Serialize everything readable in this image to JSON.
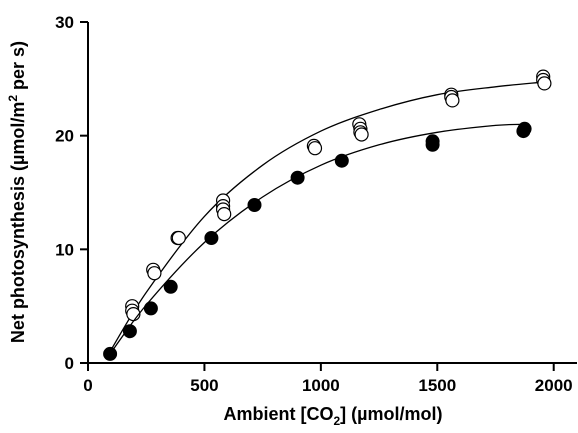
{
  "chart_data": {
    "type": "scatter",
    "title": "",
    "xlabel": {
      "prefix": "Ambient [CO",
      "sub": "2",
      "suffix": "] (µmol/mol)"
    },
    "ylabel": {
      "prefix": "Net photosynthesis (µmol/m",
      "sup": "2",
      "suffix": " per s)"
    },
    "xlim": [
      0,
      2100
    ],
    "ylim": [
      0,
      30
    ],
    "xticks": [
      "0",
      "500",
      "1000",
      "1500",
      "2000"
    ],
    "yticks": [
      "0",
      "10",
      "20",
      "30"
    ],
    "grid": false,
    "legend": "none",
    "series": [
      {
        "marker": "open-circle",
        "points": [
          [
            190,
            5.0
          ],
          [
            190,
            4.6
          ],
          [
            195,
            4.3
          ],
          [
            280,
            8.2
          ],
          [
            285,
            7.9
          ],
          [
            385,
            11.0
          ],
          [
            390,
            11.0
          ],
          [
            580,
            14.3
          ],
          [
            580,
            13.8
          ],
          [
            580,
            13.5
          ],
          [
            585,
            13.1
          ],
          [
            970,
            19.1
          ],
          [
            975,
            18.9
          ],
          [
            1165,
            21.0
          ],
          [
            1170,
            20.6
          ],
          [
            1170,
            20.3
          ],
          [
            1175,
            20.1
          ],
          [
            1560,
            23.6
          ],
          [
            1560,
            23.4
          ],
          [
            1565,
            23.1
          ],
          [
            1955,
            25.2
          ],
          [
            1955,
            24.9
          ],
          [
            1960,
            24.6
          ]
        ],
        "fit": [
          [
            100,
            1.2
          ],
          [
            250,
            6.2
          ],
          [
            500,
            12.9
          ],
          [
            750,
            17.4
          ],
          [
            1000,
            20.4
          ],
          [
            1250,
            22.3
          ],
          [
            1500,
            23.6
          ],
          [
            1750,
            24.3
          ],
          [
            1950,
            24.7
          ]
        ]
      },
      {
        "marker": "filled-circle",
        "points": [
          [
            95,
            0.8
          ],
          [
            180,
            2.8
          ],
          [
            270,
            4.8
          ],
          [
            355,
            6.7
          ],
          [
            530,
            11.0
          ],
          [
            715,
            13.9
          ],
          [
            900,
            16.3
          ],
          [
            1090,
            17.8
          ],
          [
            1480,
            19.2
          ],
          [
            1480,
            19.5
          ],
          [
            1870,
            20.4
          ],
          [
            1875,
            20.6
          ]
        ],
        "fit": [
          [
            95,
            0.8
          ],
          [
            250,
            5.1
          ],
          [
            500,
            10.6
          ],
          [
            750,
            14.6
          ],
          [
            1000,
            17.4
          ],
          [
            1250,
            19.2
          ],
          [
            1500,
            20.3
          ],
          [
            1750,
            20.9
          ],
          [
            1880,
            21.0
          ]
        ]
      }
    ]
  }
}
